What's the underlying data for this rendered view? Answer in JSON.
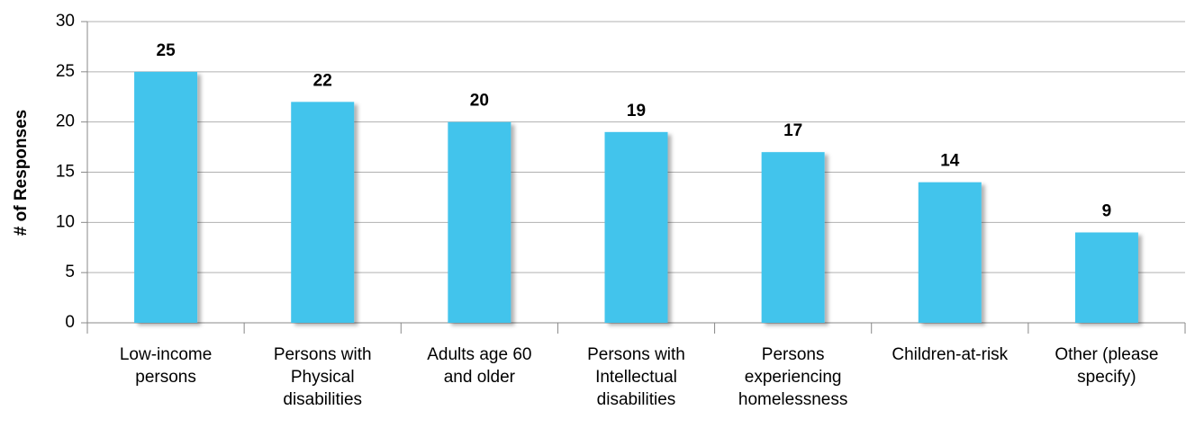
{
  "chart_data": {
    "type": "bar",
    "y_label": "# of Responses",
    "categories": [
      "Low-income\npersons",
      "Persons with\nPhysical\ndisabilities",
      "Adults age 60\nand older",
      "Persons with\nIntellectual\ndisabilities",
      "Persons\nexperiencing\nhomelessness",
      "Children-at-risk",
      "Other (please\nspecify)"
    ],
    "values": [
      25,
      22,
      20,
      19,
      17,
      14,
      9
    ],
    "color": "#43c4ec",
    "ylim": [
      0,
      30
    ],
    "yticks": [
      0,
      5,
      10,
      15,
      20,
      25,
      30
    ],
    "grid": true
  }
}
